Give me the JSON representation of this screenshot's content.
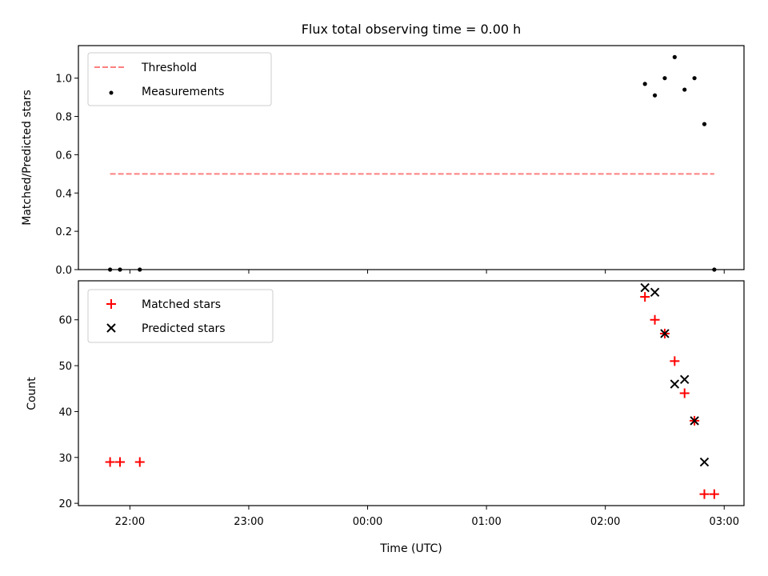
{
  "chart_data": [
    {
      "type": "scatter",
      "title": "Flux total observing time = 0.00 h",
      "xlabel": "",
      "ylabel": "Matched/Predicted stars",
      "xlim": [
        "21:34",
        "03:10"
      ],
      "ylim": [
        0,
        1.17
      ],
      "yticks": [
        "0.0",
        "0.2",
        "0.4",
        "0.6",
        "0.8",
        "1.0"
      ],
      "legend_position": "upper-left",
      "series": [
        {
          "name": "Threshold",
          "style": "dashed-line",
          "color": "#ff7f7f",
          "points": [
            [
              "21:50",
              0.5
            ],
            [
              "02:55",
              0.5
            ]
          ]
        },
        {
          "name": "Measurements",
          "style": "dot",
          "color": "#000000",
          "points": [
            [
              "21:50",
              0.0
            ],
            [
              "21:55",
              0.0
            ],
            [
              "22:05",
              0.0
            ],
            [
              "02:20",
              0.97
            ],
            [
              "02:25",
              0.91
            ],
            [
              "02:30",
              1.0
            ],
            [
              "02:35",
              1.11
            ],
            [
              "02:40",
              0.94
            ],
            [
              "02:45",
              1.0
            ],
            [
              "02:50",
              0.76
            ],
            [
              "02:55",
              0.0
            ]
          ]
        }
      ]
    },
    {
      "type": "scatter",
      "title": "",
      "xlabel": "Time (UTC)",
      "ylabel": "Count",
      "xlim": [
        "21:34",
        "03:10"
      ],
      "ylim": [
        19.5,
        68.5
      ],
      "xticks": [
        "22:00",
        "23:00",
        "00:00",
        "01:00",
        "02:00",
        "03:00"
      ],
      "yticks": [
        "20",
        "30",
        "40",
        "50",
        "60"
      ],
      "legend_position": "upper-left",
      "series": [
        {
          "name": "Matched stars",
          "style": "plus",
          "color": "#ff0000",
          "points": [
            [
              "21:50",
              29
            ],
            [
              "21:55",
              29
            ],
            [
              "22:05",
              29
            ],
            [
              "02:20",
              65
            ],
            [
              "02:25",
              60
            ],
            [
              "02:30",
              57
            ],
            [
              "02:35",
              51
            ],
            [
              "02:40",
              44
            ],
            [
              "02:45",
              38
            ],
            [
              "02:50",
              22
            ],
            [
              "02:55",
              22
            ]
          ]
        },
        {
          "name": "Predicted stars",
          "style": "x",
          "color": "#000000",
          "points": [
            [
              "02:20",
              67
            ],
            [
              "02:25",
              66
            ],
            [
              "02:30",
              57
            ],
            [
              "02:35",
              46
            ],
            [
              "02:40",
              47
            ],
            [
              "02:45",
              38
            ],
            [
              "02:50",
              29
            ]
          ]
        }
      ]
    }
  ]
}
